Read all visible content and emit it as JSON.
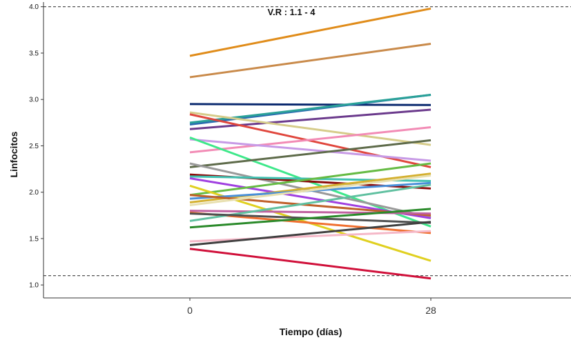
{
  "chart_data": {
    "type": "line",
    "title": "",
    "xlabel": "Tiempo (días)",
    "ylabel": "Linfocitos",
    "categories": [
      "0",
      "28"
    ],
    "ylim": [
      0.86,
      4.05
    ],
    "yticks": [
      "1.0",
      "1.5",
      "2.0",
      "2.5",
      "3.0",
      "3.5",
      "4.0"
    ],
    "grid": false,
    "reference_lines": [
      4.0,
      1.1
    ],
    "reference_label": "V.R : 1.1 - 4",
    "series": [
      {
        "values": [
          3.47,
          3.98
        ],
        "color": "#e08c1a"
      },
      {
        "values": [
          3.24,
          3.6
        ],
        "color": "#c98a4a"
      },
      {
        "values": [
          2.95,
          2.94
        ],
        "color": "#0b2a6f"
      },
      {
        "values": [
          2.73,
          3.05
        ],
        "color": "#2b6cb0"
      },
      {
        "values": [
          2.75,
          3.05
        ],
        "color": "#2aa198"
      },
      {
        "values": [
          2.68,
          2.89
        ],
        "color": "#6b3a8c"
      },
      {
        "values": [
          2.86,
          2.51
        ],
        "color": "#d6cc8a"
      },
      {
        "values": [
          2.84,
          2.27
        ],
        "color": "#e0473d"
      },
      {
        "values": [
          2.43,
          2.7
        ],
        "color": "#f28bb5"
      },
      {
        "values": [
          2.57,
          2.34
        ],
        "color": "#c79ae6"
      },
      {
        "values": [
          2.59,
          1.63
        ],
        "color": "#3ee88a"
      },
      {
        "values": [
          2.27,
          2.56
        ],
        "color": "#5e6b4a"
      },
      {
        "values": [
          2.31,
          1.73
        ],
        "color": "#9a9a9a"
      },
      {
        "values": [
          2.19,
          2.04
        ],
        "color": "#8b0a0a"
      },
      {
        "values": [
          2.17,
          2.12
        ],
        "color": "#40c0b0"
      },
      {
        "values": [
          2.15,
          1.72
        ],
        "color": "#a040e0"
      },
      {
        "values": [
          1.97,
          2.31
        ],
        "color": "#66bb44"
      },
      {
        "values": [
          2.07,
          1.26
        ],
        "color": "#e0d020"
      },
      {
        "values": [
          1.89,
          2.2
        ],
        "color": "#d4b030"
      },
      {
        "values": [
          1.93,
          2.1
        ],
        "color": "#4a90d9"
      },
      {
        "values": [
          1.97,
          1.75
        ],
        "color": "#c0602a"
      },
      {
        "values": [
          1.86,
          2.18
        ],
        "color": "#e8e0b0"
      },
      {
        "values": [
          1.8,
          1.77
        ],
        "color": "#c060a0"
      },
      {
        "values": [
          1.78,
          1.56
        ],
        "color": "#f07030"
      },
      {
        "values": [
          1.69,
          2.08
        ],
        "color": "#60c0a0"
      },
      {
        "values": [
          1.77,
          1.67
        ],
        "color": "#505050"
      },
      {
        "values": [
          1.62,
          1.82
        ],
        "color": "#2a8a2a"
      },
      {
        "values": [
          1.47,
          1.58
        ],
        "color": "#f5b8c8"
      },
      {
        "values": [
          1.43,
          1.68
        ],
        "color": "#404040"
      },
      {
        "values": [
          1.39,
          1.07
        ],
        "color": "#d0103a"
      }
    ]
  }
}
